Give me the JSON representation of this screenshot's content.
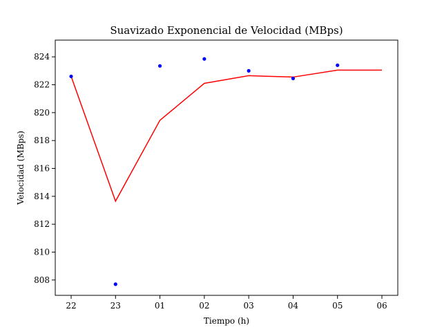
{
  "chart_data": {
    "type": "line",
    "title": "Suavizado Exponencial de Velocidad (MBps)",
    "xlabel": "Tiempo (h)",
    "ylabel": "Velocidad (MBps)",
    "categories": [
      "22",
      "23",
      "01",
      "02",
      "03",
      "04",
      "05",
      "06"
    ],
    "ylim": [
      806.9,
      825.2
    ],
    "yticks": [
      808,
      810,
      812,
      814,
      816,
      818,
      820,
      822,
      824
    ],
    "grid": false,
    "series": [
      {
        "kind": "scatter",
        "color": "#0000ff",
        "x": [
          "22",
          "23",
          "01",
          "02",
          "03",
          "04",
          "05"
        ],
        "values": [
          822.6,
          807.7,
          823.35,
          823.85,
          823.0,
          822.45,
          823.4
        ]
      },
      {
        "kind": "line",
        "color": "#ff0000",
        "x": [
          "22",
          "23",
          "01",
          "02",
          "03",
          "04",
          "05",
          "06"
        ],
        "values": [
          822.6,
          813.65,
          819.45,
          822.1,
          822.65,
          822.55,
          823.05,
          823.05
        ]
      }
    ]
  }
}
